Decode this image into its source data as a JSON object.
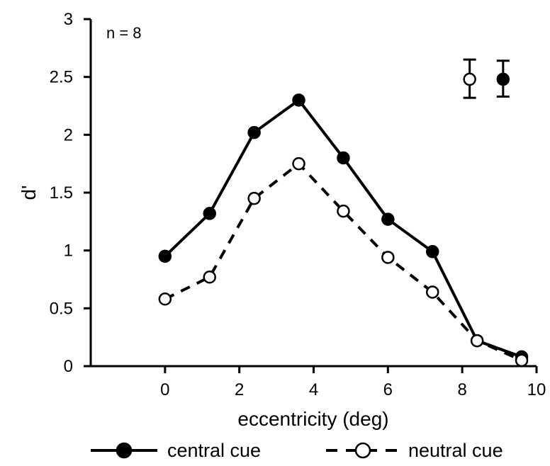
{
  "chart_data": {
    "type": "line",
    "title": "",
    "xlabel": "eccentricity (deg)",
    "ylabel": "d'",
    "xlim": [
      -2,
      10
    ],
    "ylim": [
      0,
      3
    ],
    "xticks": [
      0,
      2,
      4,
      6,
      8,
      10
    ],
    "yticks": [
      0,
      0.5,
      1,
      1.5,
      2,
      2.5,
      3
    ],
    "xtick_labels": [
      "0",
      "2",
      "4",
      "6",
      "8",
      "10"
    ],
    "ytick_labels": [
      "0",
      "0.5",
      "1",
      "1.5",
      "2",
      "2.5",
      "3"
    ],
    "annotation": "n = 8",
    "grid": false,
    "legend_placement": "bottom",
    "series": [
      {
        "name": "central cue",
        "style": "solid",
        "marker": "filled-circle",
        "x": [
          0,
          1.2,
          2.4,
          3.6,
          4.8,
          6.0,
          7.2,
          8.4,
          9.6
        ],
        "y": [
          0.95,
          1.32,
          2.02,
          2.3,
          1.8,
          1.27,
          0.99,
          0.22,
          0.08
        ]
      },
      {
        "name": "neutral cue",
        "style": "dashed",
        "marker": "open-circle",
        "x": [
          0,
          1.2,
          2.4,
          3.6,
          4.8,
          6.0,
          7.2,
          8.4,
          9.6
        ],
        "y": [
          0.58,
          0.77,
          1.45,
          1.75,
          1.34,
          0.94,
          0.64,
          0.22,
          0.05
        ]
      }
    ],
    "error_bars": [
      {
        "series": "neutral cue",
        "x": 8.2,
        "y": 2.48,
        "low": 2.32,
        "high": 2.65
      },
      {
        "series": "central cue",
        "x": 9.1,
        "y": 2.48,
        "low": 2.33,
        "high": 2.64
      }
    ],
    "colors": {
      "line": "#000000",
      "open_fill": "#ffffff"
    }
  }
}
